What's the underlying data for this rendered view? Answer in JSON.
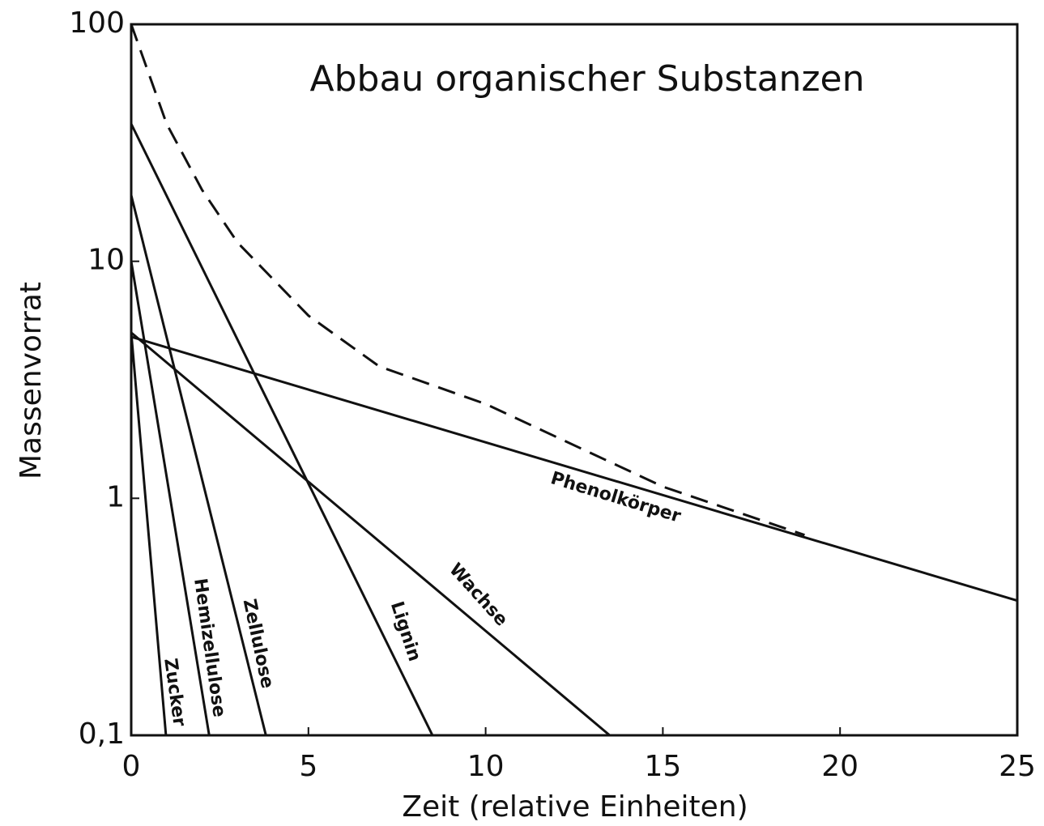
{
  "chart_data": {
    "type": "line",
    "title": "Abbau organischer Substanzen",
    "x_label": "Zeit (relative Einheiten)",
    "y_label": "Massenvorrat",
    "log_y": true,
    "xlim": [
      0,
      25
    ],
    "xticks": [
      0,
      5,
      10,
      15,
      20,
      25
    ],
    "ylim": [
      0.1,
      100
    ],
    "yticks": [
      {
        "value": 0.1,
        "label": "0,1"
      },
      1,
      10,
      100
    ],
    "series": [
      {
        "name": "Zucker",
        "color": "#111111",
        "x": [
          0,
          0.98
        ],
        "values": [
          5,
          0.1
        ]
      },
      {
        "name": "Hemizellulose",
        "color": "#111111",
        "x": [
          0,
          2.2
        ],
        "values": [
          10,
          0.1
        ]
      },
      {
        "name": "Zellulose",
        "color": "#111111",
        "x": [
          0,
          3.8
        ],
        "values": [
          19,
          0.1
        ]
      },
      {
        "name": "Lignin",
        "color": "#111111",
        "x": [
          0,
          8.5
        ],
        "values": [
          38,
          0.1
        ]
      },
      {
        "name": "Wachse",
        "color": "#111111",
        "x": [
          0,
          13.5
        ],
        "values": [
          5,
          0.1
        ]
      },
      {
        "name": "Phenolkörper",
        "color": "#111111",
        "x": [
          0,
          25
        ],
        "values": [
          4.8,
          0.37
        ]
      },
      {
        "color": "#111111",
        "dashed": true,
        "x": [
          0,
          1,
          2,
          3,
          5,
          7,
          10,
          15,
          19
        ],
        "values": [
          100,
          38,
          20,
          12,
          5.9,
          3.6,
          2.5,
          1.12,
          0.7
        ]
      }
    ]
  }
}
